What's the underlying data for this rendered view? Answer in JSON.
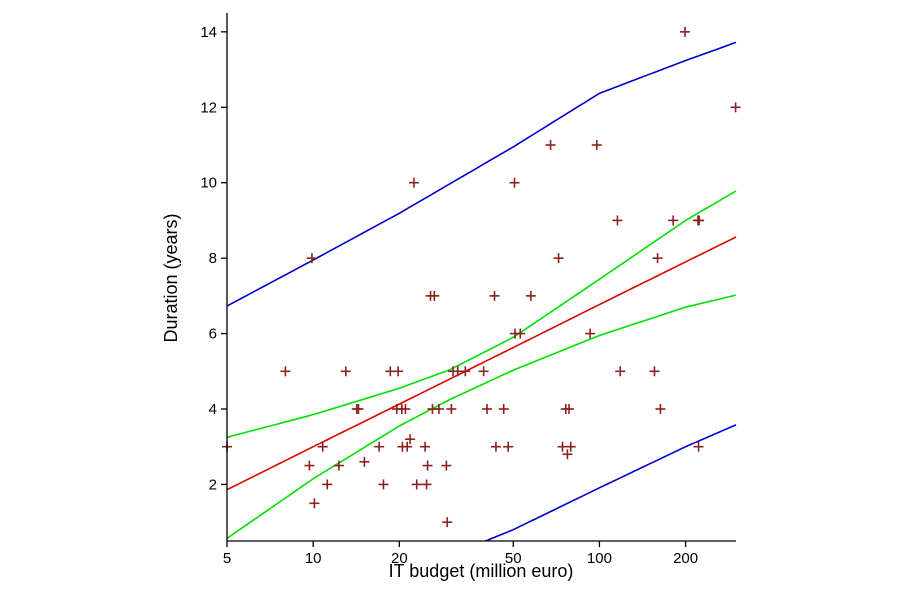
{
  "chart_data": {
    "type": "scatter",
    "title": "",
    "xlabel": "IT budget (million euro)",
    "ylabel": "Duration (years)",
    "x_scale": "log",
    "xlim": [
      5,
      300
    ],
    "ylim": [
      0.5,
      14.5
    ],
    "x_ticks": [
      5,
      10,
      20,
      50,
      100,
      200
    ],
    "x_tick_labels": [
      "5",
      "10",
      "20",
      "50",
      "100",
      "200"
    ],
    "y_ticks": [
      2,
      4,
      6,
      8,
      10,
      12,
      14
    ],
    "y_tick_labels": [
      "2",
      "4",
      "6",
      "8",
      "10",
      "12",
      "14"
    ],
    "grid": false,
    "colors": {
      "points": "#8b2020",
      "fit": "#e00000",
      "confidence": "#00e000",
      "prediction": "#0000cc",
      "axis": "#000000"
    },
    "points": [
      {
        "x": 5.0,
        "y": 3.0
      },
      {
        "x": 8.0,
        "y": 5.0
      },
      {
        "x": 9.9,
        "y": 8.0
      },
      {
        "x": 9.7,
        "y": 2.5
      },
      {
        "x": 10.1,
        "y": 1.5
      },
      {
        "x": 10.8,
        "y": 3.0
      },
      {
        "x": 11.2,
        "y": 2.0
      },
      {
        "x": 12.3,
        "y": 2.5
      },
      {
        "x": 13.0,
        "y": 5.0
      },
      {
        "x": 14.2,
        "y": 4.0
      },
      {
        "x": 14.4,
        "y": 4.0
      },
      {
        "x": 15.1,
        "y": 2.6
      },
      {
        "x": 17.0,
        "y": 3.0
      },
      {
        "x": 17.6,
        "y": 2.0
      },
      {
        "x": 18.6,
        "y": 5.0
      },
      {
        "x": 19.8,
        "y": 5.0
      },
      {
        "x": 19.6,
        "y": 4.0
      },
      {
        "x": 20.4,
        "y": 4.0
      },
      {
        "x": 21.0,
        "y": 4.0
      },
      {
        "x": 20.5,
        "y": 3.0
      },
      {
        "x": 21.3,
        "y": 3.0
      },
      {
        "x": 21.8,
        "y": 3.2
      },
      {
        "x": 22.5,
        "y": 10.0
      },
      {
        "x": 23.0,
        "y": 2.0
      },
      {
        "x": 24.6,
        "y": 3.0
      },
      {
        "x": 25.1,
        "y": 2.5
      },
      {
        "x": 24.9,
        "y": 2.0
      },
      {
        "x": 25.7,
        "y": 7.0
      },
      {
        "x": 26.5,
        "y": 7.0
      },
      {
        "x": 26.1,
        "y": 4.0
      },
      {
        "x": 27.5,
        "y": 4.0
      },
      {
        "x": 29.2,
        "y": 2.5
      },
      {
        "x": 29.4,
        "y": 1.0
      },
      {
        "x": 30.4,
        "y": 4.0
      },
      {
        "x": 30.8,
        "y": 5.0
      },
      {
        "x": 32.0,
        "y": 5.0
      },
      {
        "x": 34.0,
        "y": 5.0
      },
      {
        "x": 39.4,
        "y": 5.0
      },
      {
        "x": 40.5,
        "y": 4.0
      },
      {
        "x": 43.0,
        "y": 7.0
      },
      {
        "x": 43.5,
        "y": 3.0
      },
      {
        "x": 46.3,
        "y": 4.0
      },
      {
        "x": 48.0,
        "y": 3.0
      },
      {
        "x": 50.5,
        "y": 10.0
      },
      {
        "x": 50.7,
        "y": 6.0
      },
      {
        "x": 52.9,
        "y": 6.0
      },
      {
        "x": 57.6,
        "y": 7.0
      },
      {
        "x": 67.5,
        "y": 11.0
      },
      {
        "x": 72.0,
        "y": 8.0
      },
      {
        "x": 74.3,
        "y": 3.0
      },
      {
        "x": 76.3,
        "y": 4.0
      },
      {
        "x": 77.3,
        "y": 2.8
      },
      {
        "x": 78.3,
        "y": 4.0
      },
      {
        "x": 79.4,
        "y": 3.0
      },
      {
        "x": 92.8,
        "y": 6.0
      },
      {
        "x": 97.9,
        "y": 11.0
      },
      {
        "x": 115.6,
        "y": 9.0
      },
      {
        "x": 118.2,
        "y": 5.0
      },
      {
        "x": 155.7,
        "y": 5.0
      },
      {
        "x": 159.6,
        "y": 8.0
      },
      {
        "x": 163.4,
        "y": 4.0
      },
      {
        "x": 181.0,
        "y": 9.0
      },
      {
        "x": 199.0,
        "y": 14.0
      },
      {
        "x": 221.0,
        "y": 9.0
      },
      {
        "x": 223.0,
        "y": 9.0
      },
      {
        "x": 222.0,
        "y": 3.0
      },
      {
        "x": 299.0,
        "y": 12.0
      }
    ],
    "series": [
      {
        "name": "fit",
        "style": "line",
        "x": [
          5,
          10,
          20,
          50,
          100,
          200,
          300
        ],
        "values": [
          1.86,
          3.0,
          4.13,
          5.63,
          6.77,
          7.9,
          8.56
        ]
      },
      {
        "name": "confidence-upper",
        "style": "line",
        "x": [
          5,
          10,
          20,
          30,
          50,
          100,
          200,
          300
        ],
        "values": [
          3.25,
          3.85,
          4.55,
          5.04,
          5.9,
          7.44,
          9.0,
          9.78
        ]
      },
      {
        "name": "confidence-lower",
        "style": "line",
        "x": [
          5,
          10,
          20,
          30,
          50,
          100,
          200,
          300
        ],
        "values": [
          0.57,
          2.15,
          3.55,
          4.25,
          5.03,
          5.95,
          6.7,
          7.02
        ]
      },
      {
        "name": "prediction-upper",
        "style": "line",
        "x": [
          5,
          10,
          20,
          50,
          100,
          200,
          300
        ],
        "values": [
          6.73,
          7.95,
          9.19,
          10.95,
          12.37,
          13.24,
          13.72
        ]
      },
      {
        "name": "prediction-lower",
        "style": "line",
        "x": [
          40,
          50,
          100,
          200,
          300
        ],
        "values": [
          0.5,
          0.8,
          1.91,
          3.0,
          3.58
        ]
      }
    ]
  }
}
